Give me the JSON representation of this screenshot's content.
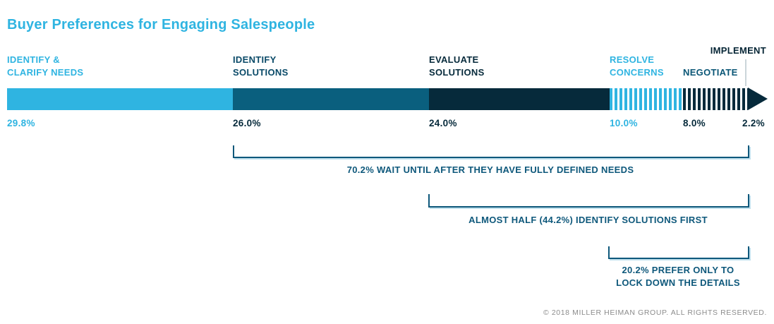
{
  "title": "Buyer Preferences for Engaging Salespeople",
  "footer": "© 2018 MILLER HEIMAN GROUP. ALL RIGHTS RESERVED.",
  "colors": {
    "light_blue": "#2FB4E1",
    "teal": "#0A5F7E",
    "dark_navy": "#062A3B",
    "bracket_blue": "#0E587B",
    "divider_gray": "#CBD5DA",
    "footer_gray": "#8C8C8C"
  },
  "chart_data": {
    "type": "bar",
    "title": "Buyer Preferences for Engaging Salespeople",
    "orientation": "horizontal-stacked",
    "unit": "%",
    "categories": [
      "IDENTIFY & CLARIFY NEEDS",
      "IDENTIFY SOLUTIONS",
      "EVALUATE SOLUTIONS",
      "RESOLVE CONCERNS",
      "NEGOTIATE",
      "IMPLEMENT"
    ],
    "values": [
      29.8,
      26.0,
      24.0,
      10.0,
      8.0,
      2.2
    ],
    "segments": [
      {
        "label": "IDENTIFY & CLARIFY NEEDS",
        "value": 29.8,
        "value_label": "29.8%",
        "fill": "solid",
        "color": "#2FB4E1"
      },
      {
        "label": "IDENTIFY SOLUTIONS",
        "value": 26.0,
        "value_label": "26.0%",
        "fill": "solid",
        "color": "#0A5F7E"
      },
      {
        "label": "EVALUATE SOLUTIONS",
        "value": 24.0,
        "value_label": "24.0%",
        "fill": "solid",
        "color": "#062A3B"
      },
      {
        "label": "RESOLVE CONCERNS",
        "value": 10.0,
        "value_label": "10.0%",
        "fill": "striped",
        "color": "#2FB4E1"
      },
      {
        "label": "NEGOTIATE",
        "value": 8.0,
        "value_label": "8.0%",
        "fill": "striped",
        "color": "#062A3B"
      },
      {
        "label": "IMPLEMENT",
        "value": 2.2,
        "value_label": "2.2%",
        "fill": "arrow",
        "color": "#062A3B"
      }
    ],
    "annotations": [
      {
        "value": 70.2,
        "label": "70.2% WAIT UNTIL AFTER THEY HAVE FULLY DEFINED NEEDS",
        "span_from": "IDENTIFY SOLUTIONS",
        "span_to": "IMPLEMENT"
      },
      {
        "value": 44.2,
        "label": "ALMOST HALF (44.2%) IDENTIFY SOLUTIONS FIRST",
        "span_from": "EVALUATE SOLUTIONS",
        "span_to": "IMPLEMENT"
      },
      {
        "value": 20.2,
        "label": "20.2% PREFER ONLY TO LOCK DOWN THE DETAILS",
        "span_from": "RESOLVE CONCERNS",
        "span_to": "IMPLEMENT"
      }
    ],
    "legend": "none",
    "grid": false
  }
}
